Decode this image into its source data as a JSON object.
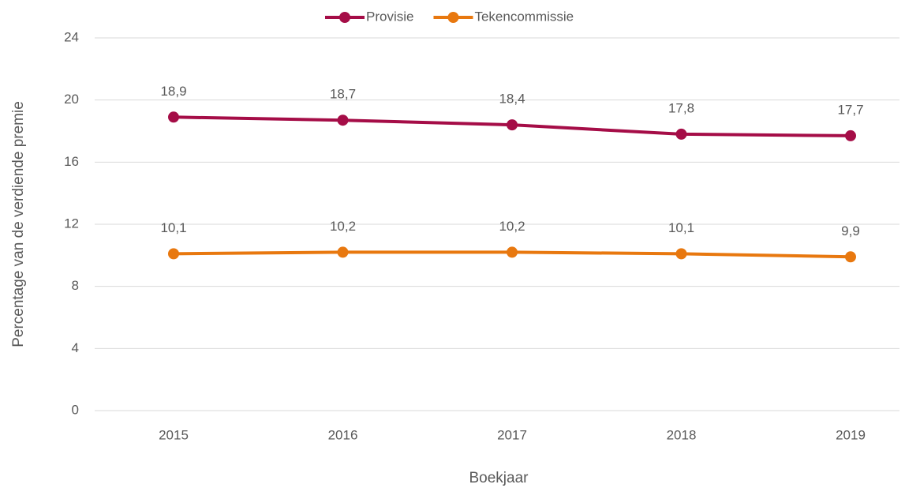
{
  "chart_data": {
    "type": "line",
    "x_label": "Boekjaar",
    "y_label": "Percentage van de verdiende premie",
    "categories": [
      "2015",
      "2016",
      "2017",
      "2018",
      "2019"
    ],
    "series": [
      {
        "name": "Provisie",
        "color": "#a50d47",
        "values": [
          18.9,
          18.7,
          18.4,
          17.8,
          17.7
        ],
        "value_labels": [
          "18,9",
          "18,7",
          "18,4",
          "17,8",
          "17,7"
        ]
      },
      {
        "name": "Tekencommissie",
        "color": "#e8780f",
        "values": [
          10.1,
          10.2,
          10.2,
          10.1,
          9.9
        ],
        "value_labels": [
          "10,1",
          "10,2",
          "10,2",
          "10,1",
          "9,9"
        ]
      }
    ],
    "ylim": [
      0,
      24
    ],
    "yticks": [
      0,
      4,
      8,
      12,
      16,
      20,
      24
    ],
    "grid": true,
    "legend": "top"
  }
}
